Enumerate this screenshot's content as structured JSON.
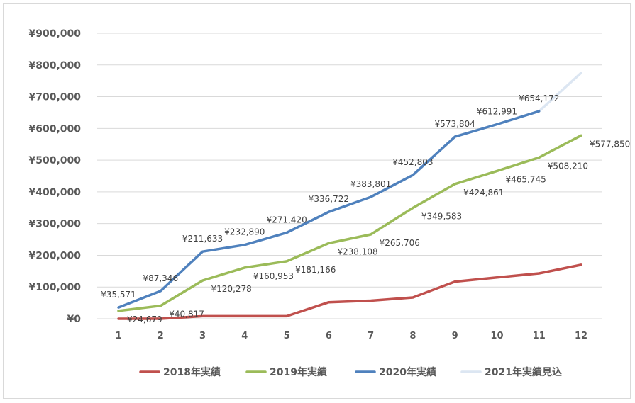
{
  "chart_data": {
    "type": "line",
    "title": "",
    "xlabel": "",
    "ylabel": "",
    "categories": [
      "1",
      "2",
      "3",
      "4",
      "5",
      "6",
      "7",
      "8",
      "9",
      "10",
      "11",
      "12"
    ],
    "ylim": [
      0,
      900000
    ],
    "yticks": [
      0,
      100000,
      200000,
      300000,
      400000,
      500000,
      600000,
      700000,
      800000,
      900000
    ],
    "ytick_labels": [
      "¥0",
      "¥100,000",
      "¥200,000",
      "¥300,000",
      "¥400,000",
      "¥500,000",
      "¥600,000",
      "¥700,000",
      "¥800,000",
      "¥900,000"
    ],
    "grid": true,
    "legend_position": "bottom",
    "series": [
      {
        "name": "2018年実績",
        "color": "#c0504d",
        "values": [
          0,
          0,
          8000,
          8000,
          8000,
          52000,
          57000,
          67000,
          117000,
          130000,
          143000,
          170000
        ],
        "labels": []
      },
      {
        "name": "2019年実績",
        "color": "#9bbb59",
        "values": [
          24679,
          40817,
          120278,
          160953,
          181166,
          238108,
          265706,
          349583,
          424861,
          465745,
          508210,
          577850
        ],
        "labels": [
          "¥24,679",
          "¥40,817",
          "¥120,278",
          "¥160,953",
          "¥181,166",
          "¥238,108",
          "¥265,706",
          "¥349,583",
          "¥424,861",
          "¥465,745",
          "¥508,210",
          "¥577,850"
        ]
      },
      {
        "name": "2020年実績",
        "color": "#4f81bd",
        "values": [
          35571,
          87346,
          211633,
          232890,
          271420,
          336722,
          383801,
          452803,
          573804,
          612991,
          654172,
          null
        ],
        "labels": [
          "¥35,571",
          "¥87,346",
          "¥211,633",
          "¥232,890",
          "¥271,420",
          "¥336,722",
          "¥383,801",
          "¥452,803",
          "¥573,804",
          "¥612,991",
          "¥654,172",
          ""
        ]
      },
      {
        "name": "2021年実績見込",
        "color": "#dce6f2",
        "values": [
          null,
          null,
          null,
          null,
          null,
          null,
          null,
          null,
          null,
          null,
          654172,
          775000
        ],
        "labels": []
      }
    ]
  }
}
